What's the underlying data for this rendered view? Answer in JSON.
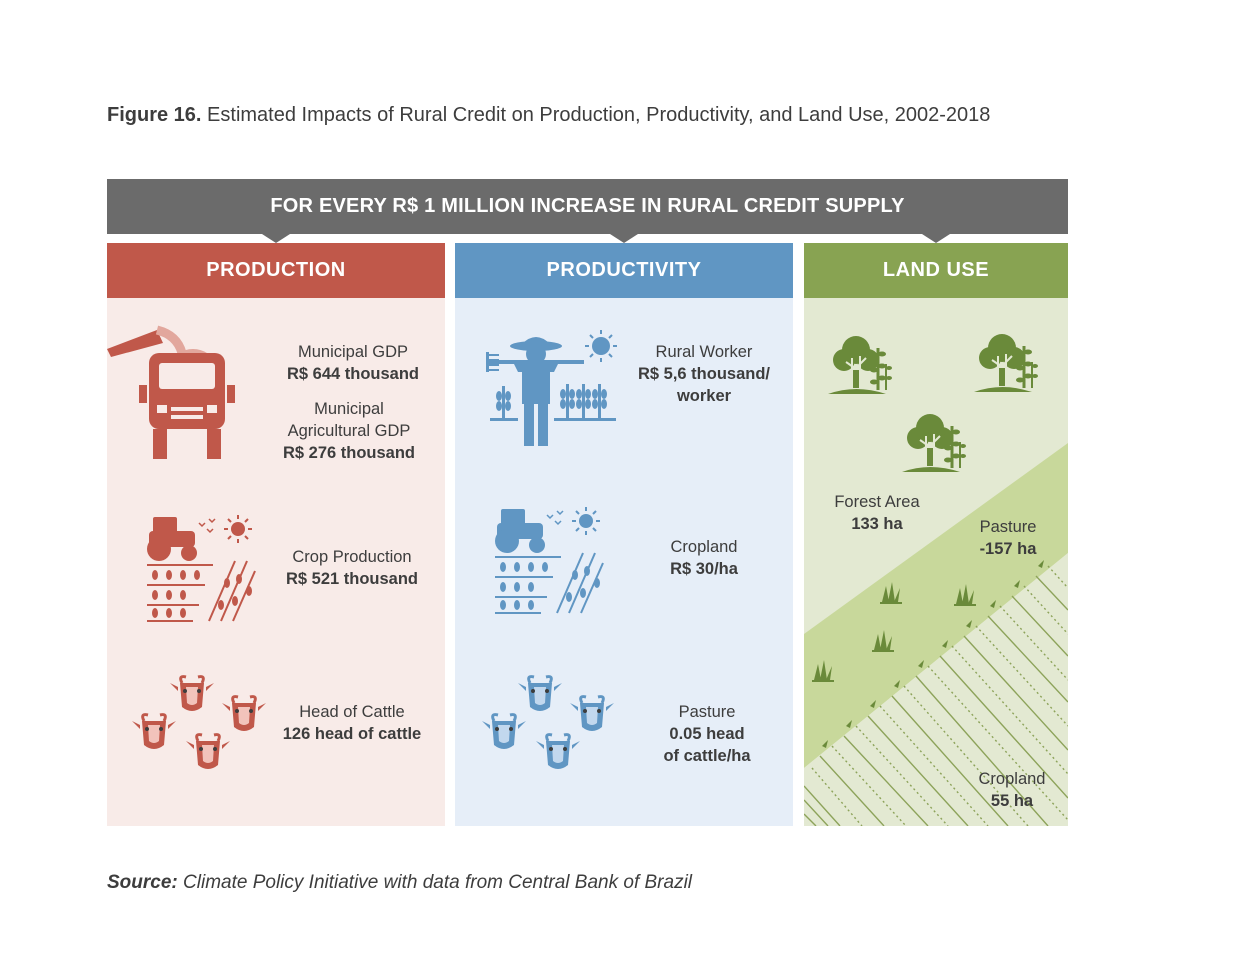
{
  "figure": {
    "label": "Figure 16.",
    "title": "Estimated Impacts of Rural Credit on Production, Productivity, and Land Use, 2002-2018"
  },
  "banner": "FOR EVERY R$ 1 MILLION INCREASE IN RURAL CREDIT SUPPLY",
  "colors": {
    "production": "#c0584a",
    "production_bg": "#f8ebe8",
    "productivity": "#6096c3",
    "productivity_bg": "#e6eef8",
    "land_use": "#88a352",
    "land_use_bg": "#e3e9d2",
    "land_use_mid": "#c8d89b",
    "tree": "#6a8a3a"
  },
  "panels": {
    "production": {
      "header": "PRODUCTION",
      "items": [
        {
          "name": "Municipal GDP",
          "value": "R$ 644 thousand",
          "icon": "truck-icon"
        },
        {
          "name1": "Municipal",
          "name2": "Agricultural GDP",
          "value": "R$ 276 thousand"
        },
        {
          "name": "Crop Production",
          "value": "R$ 521 thousand",
          "icon": "tractor-field-icon"
        },
        {
          "name": "Head of Cattle",
          "value": "126 head of cattle",
          "icon": "cattle-icon"
        }
      ]
    },
    "productivity": {
      "header": "PRODUCTIVITY",
      "items": [
        {
          "name": "Rural Worker",
          "value1": "R$ 5,6 thousand/",
          "value2": "worker",
          "icon": "farmer-icon"
        },
        {
          "name": "Cropland",
          "value": "R$ 30/ha",
          "icon": "tractor-field-icon"
        },
        {
          "name": "Pasture",
          "value1": "0.05 head",
          "value2": "of cattle/ha",
          "icon": "cattle-icon"
        }
      ]
    },
    "land_use": {
      "header": "LAND USE",
      "items": [
        {
          "name": "Forest Area",
          "value": "133 ha",
          "icon": "tree-icon"
        },
        {
          "name": "Pasture",
          "value": "-157 ha",
          "icon": "grass-icon"
        },
        {
          "name": "Cropland",
          "value": "55 ha",
          "icon": "crop-rows-icon"
        }
      ]
    }
  },
  "source": {
    "label": "Source:",
    "text": "Climate Policy Initiative with data from Central Bank of Brazil"
  }
}
